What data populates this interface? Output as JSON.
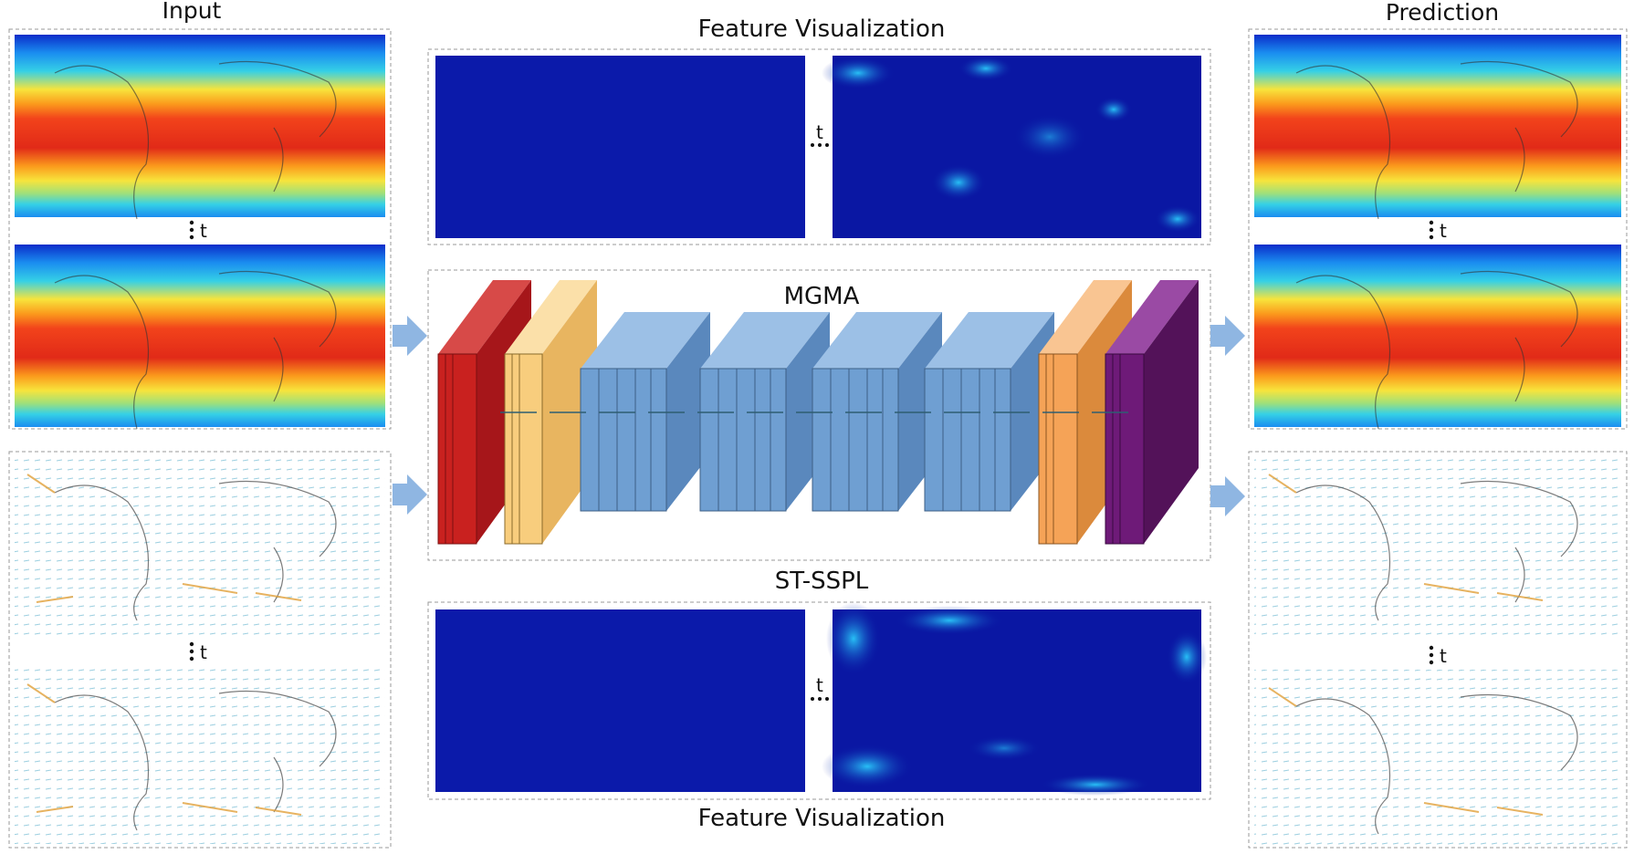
{
  "labels": {
    "input": "Input",
    "prediction": "Prediction",
    "feature_top": "Feature Visualization",
    "feature_bottom": "Feature Visualization",
    "mgma": "MGMA",
    "st_sspl": "ST-SSPL",
    "time_marker": "t"
  },
  "colors": {
    "temp_gradient": [
      "#0b2cc9",
      "#1a8df0",
      "#35d0e6",
      "#9fe07a",
      "#f7e43c",
      "#fb9a1c",
      "#f2431b",
      "#e12a18"
    ],
    "feature_bg": "#0a17a3",
    "feature_hot": "#1aa8ff",
    "block_red": "#c9211f",
    "block_light_orange": "#f8cd7d",
    "block_blue": "#6f9fd2",
    "block_orange": "#f5a357",
    "block_purple": "#6e1a78",
    "arrow": "#8fb6e2",
    "box_border": "#9a9a9a"
  },
  "icons": [
    "right-arrow-icon",
    "vertical-ellipsis-icon",
    "horizontal-ellipsis-icon"
  ]
}
